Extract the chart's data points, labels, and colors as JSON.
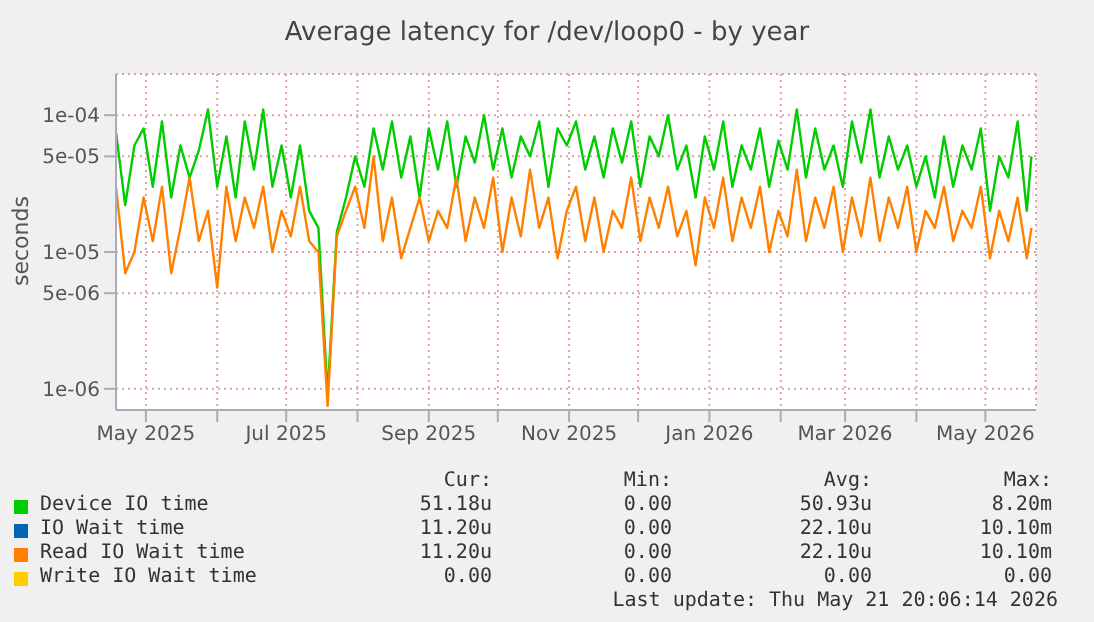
{
  "chart_data": {
    "type": "line",
    "title": "Average latency for /dev/loop0 - by year",
    "ylabel": "seconds",
    "log": "y",
    "grid": true,
    "legend": "bottom",
    "x": [
      "2025-04-18",
      "2025-04-22",
      "2025-04-26",
      "2025-04-30",
      "2025-05-04",
      "2025-05-08",
      "2025-05-12",
      "2025-05-16",
      "2025-05-20",
      "2025-05-24",
      "2025-05-28",
      "2025-06-01",
      "2025-06-05",
      "2025-06-09",
      "2025-06-13",
      "2025-06-17",
      "2025-06-21",
      "2025-06-25",
      "2025-06-29",
      "2025-07-03",
      "2025-07-07",
      "2025-07-11",
      "2025-07-15",
      "2025-07-19",
      "2025-07-23",
      "2025-07-27",
      "2025-07-31",
      "2025-08-04",
      "2025-08-08",
      "2025-08-12",
      "2025-08-16",
      "2025-08-20",
      "2025-08-24",
      "2025-08-28",
      "2025-09-01",
      "2025-09-05",
      "2025-09-09",
      "2025-09-13",
      "2025-09-17",
      "2025-09-21",
      "2025-09-25",
      "2025-09-29",
      "2025-10-03",
      "2025-10-07",
      "2025-10-11",
      "2025-10-15",
      "2025-10-19",
      "2025-10-23",
      "2025-10-27",
      "2025-10-31",
      "2025-11-04",
      "2025-11-08",
      "2025-11-12",
      "2025-11-16",
      "2025-11-20",
      "2025-11-24",
      "2025-11-28",
      "2025-12-02",
      "2025-12-06",
      "2025-12-10",
      "2025-12-14",
      "2025-12-18",
      "2025-12-22",
      "2025-12-26",
      "2025-12-30",
      "2026-01-03",
      "2026-01-07",
      "2026-01-11",
      "2026-01-15",
      "2026-01-19",
      "2026-01-23",
      "2026-01-27",
      "2026-01-31",
      "2026-02-04",
      "2026-02-08",
      "2026-02-12",
      "2026-02-16",
      "2026-02-20",
      "2026-02-24",
      "2026-02-28",
      "2026-03-04",
      "2026-03-08",
      "2026-03-12",
      "2026-03-16",
      "2026-03-20",
      "2026-03-24",
      "2026-03-28",
      "2026-04-01",
      "2026-04-05",
      "2026-04-09",
      "2026-04-13",
      "2026-04-17",
      "2026-04-21",
      "2026-04-25",
      "2026-04-29",
      "2026-05-03",
      "2026-05-07",
      "2026-05-11",
      "2026-05-15",
      "2026-05-19",
      "2026-05-21"
    ],
    "series": [
      {
        "name": "Device IO time",
        "color": "#00cc00",
        "values": [
          7.5e-05,
          2.2e-05,
          6e-05,
          8e-05,
          3e-05,
          9e-05,
          2.5e-05,
          6e-05,
          3.5e-05,
          5.5e-05,
          0.00011,
          3e-05,
          7e-05,
          2.5e-05,
          9e-05,
          4e-05,
          0.00011,
          3e-05,
          6e-05,
          2.5e-05,
          6e-05,
          2e-05,
          1.5e-05,
          9e-07,
          1.4e-05,
          2.5e-05,
          5e-05,
          3e-05,
          8e-05,
          4e-05,
          9e-05,
          3.5e-05,
          7e-05,
          2.5e-05,
          8e-05,
          4e-05,
          9e-05,
          3e-05,
          7e-05,
          4.5e-05,
          0.0001,
          4e-05,
          8e-05,
          3.5e-05,
          7e-05,
          5e-05,
          9e-05,
          3e-05,
          8e-05,
          6e-05,
          9e-05,
          4e-05,
          7e-05,
          3.5e-05,
          8e-05,
          4.5e-05,
          9e-05,
          3e-05,
          7e-05,
          5e-05,
          0.0001,
          4e-05,
          6e-05,
          2.5e-05,
          7e-05,
          4e-05,
          9e-05,
          3e-05,
          6e-05,
          4e-05,
          8e-05,
          3e-05,
          6.5e-05,
          4e-05,
          0.00011,
          3.5e-05,
          8e-05,
          4e-05,
          6e-05,
          3e-05,
          9e-05,
          4.5e-05,
          0.00011,
          3.5e-05,
          7e-05,
          4e-05,
          6e-05,
          3e-05,
          5e-05,
          2.5e-05,
          7e-05,
          3e-05,
          6e-05,
          4e-05,
          8e-05,
          2e-05,
          5e-05,
          3.5e-05,
          9e-05,
          2e-05,
          5e-05
        ]
      },
      {
        "name": "IO Wait time",
        "color": "#0066b3",
        "values": [
          null,
          null,
          null,
          null,
          null,
          null,
          null,
          null,
          null,
          null,
          null,
          null,
          null,
          null,
          null,
          null,
          null,
          null,
          null,
          null,
          null,
          null,
          null,
          null,
          null,
          null,
          null,
          null,
          null,
          null,
          null,
          null,
          null,
          null,
          null,
          null,
          null,
          null,
          null,
          null,
          null,
          null,
          null,
          null,
          null,
          null,
          null,
          null,
          null,
          null,
          null,
          null,
          null,
          null,
          null,
          null,
          null,
          null,
          null,
          null,
          null,
          null,
          null,
          null,
          null,
          null,
          null,
          null,
          null,
          null,
          null,
          null,
          null,
          null,
          null,
          null,
          null,
          null,
          null,
          null,
          null,
          null,
          null,
          null,
          null,
          null,
          null,
          null,
          null,
          null,
          null,
          null,
          null,
          null,
          null,
          null,
          null,
          null,
          null,
          null,
          null
        ]
      },
      {
        "name": "Read IO Wait time",
        "color": "#ff8000",
        "values": [
          3e-05,
          7e-06,
          1e-05,
          2.5e-05,
          1.2e-05,
          3e-05,
          7e-06,
          1.5e-05,
          3.5e-05,
          1.2e-05,
          2e-05,
          5.5e-06,
          3e-05,
          1.2e-05,
          2.5e-05,
          1.5e-05,
          3e-05,
          1e-05,
          2e-05,
          1.3e-05,
          3e-05,
          1.2e-05,
          1e-05,
          7.5e-07,
          1.3e-05,
          2e-05,
          3e-05,
          1.5e-05,
          5e-05,
          1.2e-05,
          2.5e-05,
          9e-06,
          1.5e-05,
          2.5e-05,
          1.2e-05,
          2e-05,
          1.5e-05,
          3.5e-05,
          1.2e-05,
          2.5e-05,
          1.5e-05,
          3.5e-05,
          1e-05,
          2.5e-05,
          1.3e-05,
          4e-05,
          1.5e-05,
          2.5e-05,
          9e-06,
          2e-05,
          3e-05,
          1.2e-05,
          2.5e-05,
          1e-05,
          2e-05,
          1.5e-05,
          3.5e-05,
          1.2e-05,
          2.5e-05,
          1.5e-05,
          3e-05,
          1.3e-05,
          2e-05,
          8e-06,
          2.5e-05,
          1.5e-05,
          3.5e-05,
          1.2e-05,
          2.5e-05,
          1.5e-05,
          3e-05,
          1e-05,
          2e-05,
          1.3e-05,
          4e-05,
          1.2e-05,
          2.5e-05,
          1.5e-05,
          3e-05,
          1e-05,
          2.5e-05,
          1.3e-05,
          3.5e-05,
          1.2e-05,
          2.5e-05,
          1.5e-05,
          3e-05,
          1e-05,
          2e-05,
          1.5e-05,
          3e-05,
          1.2e-05,
          2e-05,
          1.5e-05,
          3e-05,
          9e-06,
          2e-05,
          1.2e-05,
          2.5e-05,
          9e-06,
          1.5e-05
        ]
      },
      {
        "name": "Write IO Wait time",
        "color": "#ffcc00",
        "values": [
          null,
          null,
          null,
          null,
          null,
          null,
          null,
          null,
          null,
          null,
          null,
          null,
          null,
          null,
          null,
          null,
          null,
          null,
          null,
          null,
          null,
          null,
          null,
          null,
          null,
          null,
          null,
          null,
          null,
          null,
          null,
          null,
          null,
          null,
          null,
          null,
          null,
          null,
          null,
          null,
          null,
          null,
          null,
          null,
          null,
          null,
          null,
          null,
          null,
          null,
          null,
          null,
          null,
          null,
          null,
          null,
          null,
          null,
          null,
          null,
          null,
          null,
          null,
          null,
          null,
          null,
          null,
          null,
          null,
          null,
          null,
          null,
          null,
          null,
          null,
          null,
          null,
          null,
          null,
          null,
          null,
          null,
          null,
          null,
          null,
          null,
          null,
          null,
          null,
          null,
          null,
          null,
          null,
          null,
          null,
          null,
          null,
          null,
          null,
          null,
          null
        ]
      }
    ],
    "xlim": [
      "2025-04-18",
      "2026-05-23"
    ],
    "xticks": [
      {
        "value": "2025-05-01",
        "label": "May 2025"
      },
      {
        "value": "2025-06-01",
        "label": null
      },
      {
        "value": "2025-07-01",
        "label": "Jul 2025"
      },
      {
        "value": "2025-08-01",
        "label": null
      },
      {
        "value": "2025-09-01",
        "label": "Sep 2025"
      },
      {
        "value": "2025-10-01",
        "label": null
      },
      {
        "value": "2025-11-01",
        "label": "Nov 2025"
      },
      {
        "value": "2025-12-01",
        "label": null
      },
      {
        "value": "2026-01-01",
        "label": "Jan 2026"
      },
      {
        "value": "2026-02-01",
        "label": null
      },
      {
        "value": "2026-03-01",
        "label": "Mar 2026"
      },
      {
        "value": "2026-04-01",
        "label": null
      },
      {
        "value": "2026-05-01",
        "label": "May 2026"
      }
    ],
    "ylim": [
      7e-07,
      0.0002
    ],
    "yticks": [
      {
        "value": 1e-06,
        "label": "1e-06"
      },
      {
        "value": 5e-06,
        "label": "5e-06"
      },
      {
        "value": 1e-05,
        "label": "1e-05"
      },
      {
        "value": 5e-05,
        "label": "5e-05"
      },
      {
        "value": 0.0001,
        "label": "1e-04"
      }
    ],
    "annotations": [
      "Cur:",
      "Min:",
      "Avg:",
      "Max:",
      "51.18u",
      "0.00",
      "50.93u",
      "8.20m",
      "11.20u",
      "0.00",
      "22.10u",
      "10.10m",
      "11.20u",
      "0.00",
      "22.10u",
      "10.10m",
      "0.00",
      "0.00",
      "0.00",
      "0.00",
      "Last update: Thu May 21 20:06:14 2026"
    ]
  }
}
